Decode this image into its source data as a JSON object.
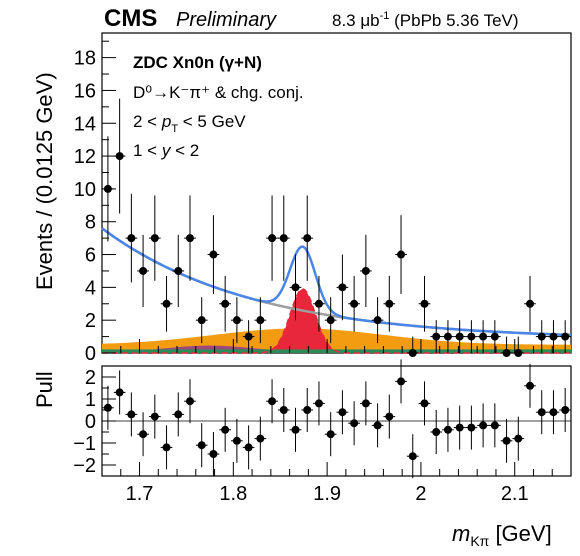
{
  "header": {
    "experiment": "CMS",
    "status": "Preliminary",
    "lumi_value": "8.3 μb",
    "lumi_exp": "-1",
    "lumi_rest": " (PbPb 5.36 TeV)"
  },
  "legend": {
    "line1": "ZDC Xn0n (γ+N)",
    "line2": "D⁰→K⁻π⁺ & chg. conj.",
    "line3_pre": "2 < ",
    "line3_var": "p",
    "line3_sub": "T",
    "line3_post": " < 5 GeV",
    "line4_pre": "1 < ",
    "line4_var": "y",
    "line4_post": " < 2"
  },
  "chart_data": [
    {
      "type": "scatter",
      "panel": "main",
      "xlabel": "m_Kπ [GeV]",
      "ylabel": "Events / (0.0125 GeV)",
      "xlim": [
        1.66,
        2.16
      ],
      "ylim": [
        0,
        19.5
      ],
      "x_ticks": [
        "1.7",
        "1.8",
        "1.9",
        "2",
        "2.1"
      ],
      "y_ticks": [
        "0",
        "2",
        "4",
        "6",
        "8",
        "10",
        "12",
        "14",
        "16",
        "18"
      ],
      "points": [
        {
          "x": 1.6663,
          "y": 10,
          "err": 3.2
        },
        {
          "x": 1.6788,
          "y": 12,
          "err": 3.5
        },
        {
          "x": 1.6913,
          "y": 7,
          "err": 2.7
        },
        {
          "x": 1.7038,
          "y": 5,
          "err": 2.2
        },
        {
          "x": 1.7163,
          "y": 7,
          "err": 2.6
        },
        {
          "x": 1.7288,
          "y": 3,
          "err": 1.7
        },
        {
          "x": 1.7413,
          "y": 5,
          "err": 2.2
        },
        {
          "x": 1.7538,
          "y": 7,
          "err": 2.6
        },
        {
          "x": 1.7663,
          "y": 2,
          "err": 1.4
        },
        {
          "x": 1.7788,
          "y": 6,
          "err": 2.4
        },
        {
          "x": 1.7913,
          "y": 3,
          "err": 1.7
        },
        {
          "x": 1.8038,
          "y": 2,
          "err": 1.4
        },
        {
          "x": 1.8163,
          "y": 1,
          "err": 1.0
        },
        {
          "x": 1.8288,
          "y": 2,
          "err": 1.4
        },
        {
          "x": 1.8413,
          "y": 7,
          "err": 2.6
        },
        {
          "x": 1.8538,
          "y": 7,
          "err": 2.6
        },
        {
          "x": 1.8663,
          "y": 4,
          "err": 2.0
        },
        {
          "x": 1.8788,
          "y": 7,
          "err": 2.6
        },
        {
          "x": 1.8913,
          "y": 3,
          "err": 1.7
        },
        {
          "x": 1.9038,
          "y": 2,
          "err": 1.4
        },
        {
          "x": 1.9163,
          "y": 4,
          "err": 2.0
        },
        {
          "x": 1.9288,
          "y": 3,
          "err": 1.7
        },
        {
          "x": 1.9413,
          "y": 5,
          "err": 2.2
        },
        {
          "x": 1.9538,
          "y": 2,
          "err": 1.4
        },
        {
          "x": 1.9663,
          "y": 3,
          "err": 1.7
        },
        {
          "x": 1.9788,
          "y": 6,
          "err": 2.4
        },
        {
          "x": 1.9913,
          "y": 0,
          "err": 1.0
        },
        {
          "x": 2.0038,
          "y": 3,
          "err": 1.7
        },
        {
          "x": 2.0163,
          "y": 1,
          "err": 1.0
        },
        {
          "x": 2.0288,
          "y": 1,
          "err": 1.0
        },
        {
          "x": 2.0413,
          "y": 1,
          "err": 1.0
        },
        {
          "x": 2.0538,
          "y": 1,
          "err": 1.0
        },
        {
          "x": 2.0663,
          "y": 1,
          "err": 1.0
        },
        {
          "x": 2.0788,
          "y": 1,
          "err": 1.0
        },
        {
          "x": 2.0913,
          "y": 0,
          "err": 1.0
        },
        {
          "x": 2.1038,
          "y": 0,
          "err": 1.0
        },
        {
          "x": 2.1163,
          "y": 3,
          "err": 1.7
        },
        {
          "x": 2.1288,
          "y": 1,
          "err": 1.0
        },
        {
          "x": 2.1413,
          "y": 1,
          "err": 1.0
        },
        {
          "x": 2.1538,
          "y": 1,
          "err": 1.0
        }
      ],
      "components": {
        "total_fit": {
          "color": "#4a86e8"
        },
        "combinatorial": {
          "color": "#9e9e9e"
        },
        "signal": {
          "color": "#e8283a"
        },
        "swap": {
          "color": "#f39c12"
        },
        "peaking_bkg": {
          "color": "#8e3a8e"
        },
        "other_bkg": {
          "color": "#2e8b57"
        }
      }
    },
    {
      "type": "scatter",
      "panel": "pull",
      "xlabel": "m_Kπ [GeV]",
      "ylabel": "Pull",
      "xlim": [
        1.66,
        2.16
      ],
      "ylim": [
        -2.5,
        2.5
      ],
      "y_ticks": [
        "−2",
        "−1",
        "0",
        "1",
        "2"
      ],
      "points": [
        {
          "x": 1.6663,
          "y": 0.6
        },
        {
          "x": 1.6788,
          "y": 1.3
        },
        {
          "x": 1.6913,
          "y": 0.3
        },
        {
          "x": 1.7038,
          "y": -0.6
        },
        {
          "x": 1.7163,
          "y": 0.2
        },
        {
          "x": 1.7288,
          "y": -1.2
        },
        {
          "x": 1.7413,
          "y": 0.3
        },
        {
          "x": 1.7538,
          "y": 0.9
        },
        {
          "x": 1.7663,
          "y": -1.1
        },
        {
          "x": 1.7788,
          "y": -1.5
        },
        {
          "x": 1.7913,
          "y": -0.4
        },
        {
          "x": 1.8038,
          "y": -0.9
        },
        {
          "x": 1.8163,
          "y": -1.2
        },
        {
          "x": 1.8288,
          "y": -0.8
        },
        {
          "x": 1.8413,
          "y": 0.9
        },
        {
          "x": 1.8538,
          "y": 0.5
        },
        {
          "x": 1.8663,
          "y": -0.4
        },
        {
          "x": 1.8788,
          "y": 0.5
        },
        {
          "x": 1.8913,
          "y": 0.8
        },
        {
          "x": 1.9038,
          "y": -0.6
        },
        {
          "x": 1.9163,
          "y": 0.4
        },
        {
          "x": 1.9288,
          "y": -0.1
        },
        {
          "x": 1.9413,
          "y": 0.8
        },
        {
          "x": 1.9538,
          "y": -0.2
        },
        {
          "x": 1.9663,
          "y": 0.2
        },
        {
          "x": 1.9788,
          "y": 1.8
        },
        {
          "x": 1.9913,
          "y": -1.6
        },
        {
          "x": 2.0038,
          "y": 0.8
        },
        {
          "x": 2.0163,
          "y": -0.5
        },
        {
          "x": 2.0288,
          "y": -0.4
        },
        {
          "x": 2.0413,
          "y": -0.3
        },
        {
          "x": 2.0538,
          "y": -0.3
        },
        {
          "x": 2.0663,
          "y": -0.2
        },
        {
          "x": 2.0788,
          "y": -0.2
        },
        {
          "x": 2.0913,
          "y": -0.9
        },
        {
          "x": 2.1038,
          "y": -0.8
        },
        {
          "x": 2.1163,
          "y": 1.6
        },
        {
          "x": 2.1288,
          "y": 0.4
        },
        {
          "x": 2.1413,
          "y": 0.4
        },
        {
          "x": 2.1538,
          "y": 0.5
        }
      ]
    }
  ]
}
